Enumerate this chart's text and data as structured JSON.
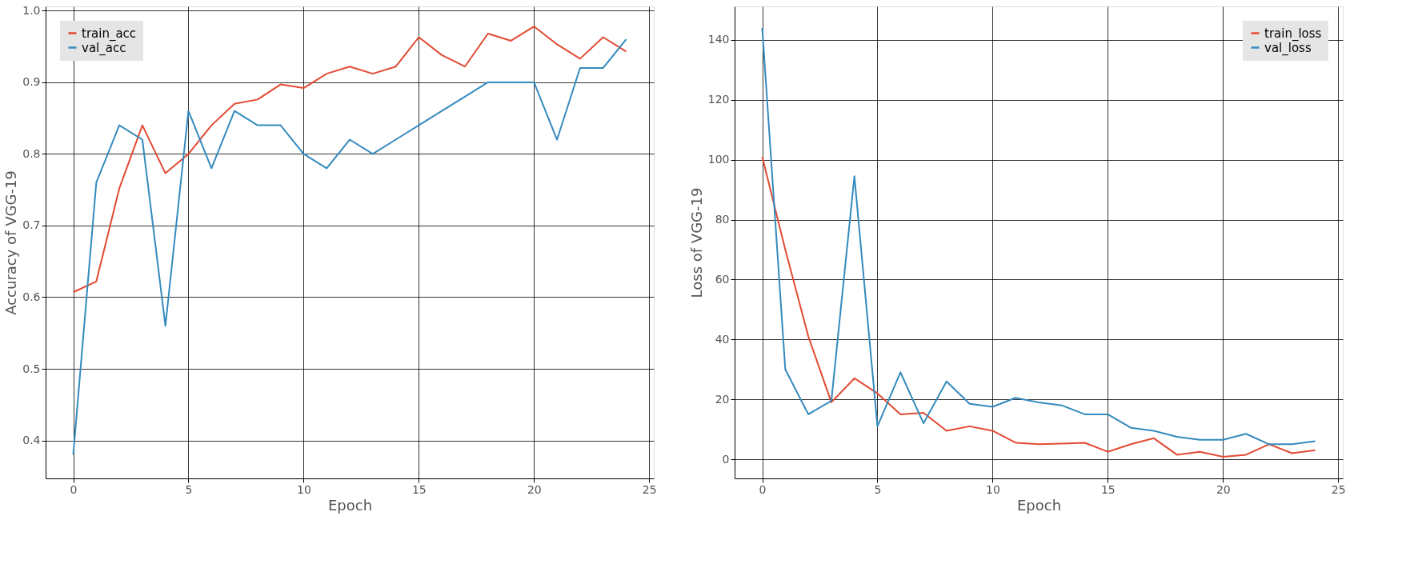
{
  "chart_data": [
    {
      "type": "line",
      "xlabel": "Epoch",
      "ylabel": "Accuracy of VGG-19",
      "x": [
        0,
        1,
        2,
        3,
        4,
        5,
        6,
        7,
        8,
        9,
        10,
        11,
        12,
        13,
        14,
        15,
        16,
        17,
        18,
        19,
        20,
        21,
        22,
        23,
        24
      ],
      "series": [
        {
          "name": "train_acc",
          "color": "#e24a33",
          "values": [
            0.607,
            0.622,
            0.752,
            0.84,
            0.773,
            0.8,
            0.84,
            0.87,
            0.876,
            0.897,
            0.892,
            0.912,
            0.922,
            0.912,
            0.922,
            0.963,
            0.938,
            0.922,
            0.968,
            0.958,
            0.978,
            0.953,
            0.933,
            0.963,
            0.943
          ]
        },
        {
          "name": "val_acc",
          "color": "#348abd",
          "values": [
            0.38,
            0.76,
            0.84,
            0.82,
            0.56,
            0.86,
            0.78,
            0.86,
            0.84,
            0.84,
            0.8,
            0.78,
            0.82,
            0.8,
            0.82,
            0.84,
            0.86,
            0.88,
            0.9,
            0.9,
            0.9,
            0.82,
            0.92,
            0.92,
            0.96
          ]
        }
      ],
      "xlim": [
        -1.2,
        25.2
      ],
      "ylim": [
        0.347,
        1.006
      ],
      "xticks": [
        0,
        5,
        10,
        15,
        20,
        25
      ],
      "yticks": [
        0.4,
        0.5,
        0.6,
        0.7,
        0.8,
        0.9,
        {
          "value": 1,
          "label": "1.0"
        }
      ],
      "grid": true,
      "legend": "top left",
      "marker": "none",
      "line_style": "solid"
    },
    {
      "type": "line",
      "xlabel": "Epoch",
      "ylabel": "Loss of VGG-19",
      "x": [
        0,
        1,
        2,
        3,
        4,
        5,
        6,
        7,
        8,
        9,
        10,
        11,
        12,
        13,
        14,
        15,
        16,
        17,
        18,
        19,
        20,
        21,
        22,
        23,
        24
      ],
      "series": [
        {
          "name": "train_loss",
          "color": "#e24a33",
          "values": [
            101,
            70,
            41,
            19,
            27,
            22,
            15,
            15.5,
            9.5,
            11,
            9.5,
            5.5,
            5,
            5.2,
            5.5,
            2.5,
            5,
            7,
            1.5,
            2.5,
            0.8,
            1.5,
            5,
            2,
            3
          ]
        },
        {
          "name": "val_loss",
          "color": "#348abd",
          "values": [
            144,
            30,
            15,
            19.5,
            94.5,
            11,
            29,
            12,
            26,
            18.5,
            17.5,
            20.5,
            19,
            18,
            15,
            15,
            10.5,
            9.5,
            7.5,
            6.5,
            6.5,
            8.5,
            5,
            5,
            6
          ]
        }
      ],
      "xlim": [
        -1.2,
        25.2
      ],
      "ylim": [
        -6.4,
        151.2
      ],
      "xticks": [
        0,
        5,
        10,
        15,
        20,
        25
      ],
      "yticks": [
        0,
        20,
        40,
        60,
        80,
        100,
        120,
        140
      ],
      "grid": true,
      "legend": "top right",
      "marker": "none",
      "line_style": "solid"
    }
  ]
}
